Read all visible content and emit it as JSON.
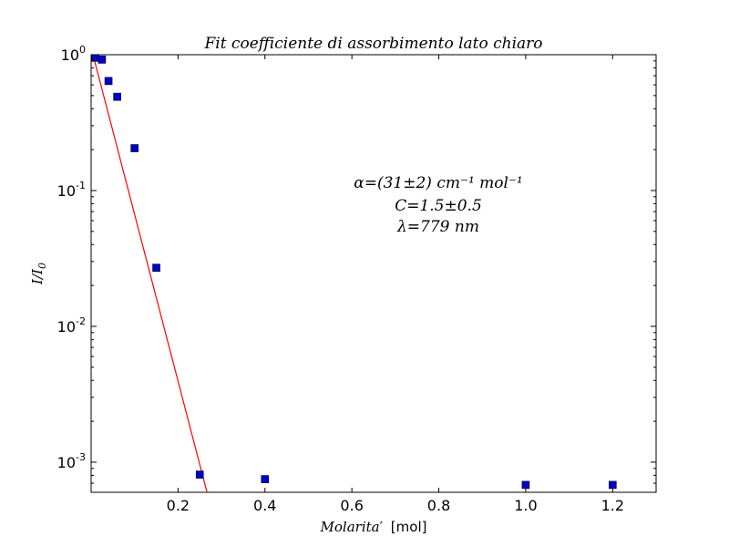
{
  "chart_data": {
    "type": "scatter",
    "title": "Fit coefficiente di assorbimento lato chiaro",
    "xlabel_math": "Molarita′",
    "xlabel_unit": "[mol]",
    "ylabel": "I/I",
    "ylabel_sub": "0",
    "xlim": [
      0.0,
      1.3
    ],
    "ylim": [
      0.0006,
      1.0
    ],
    "y_scale": "log",
    "grid": false,
    "x_ticks": [
      {
        "value": 0.2,
        "label": "0.2"
      },
      {
        "value": 0.4,
        "label": "0.4"
      },
      {
        "value": 0.6,
        "label": "0.6"
      },
      {
        "value": 0.8,
        "label": "0.8"
      },
      {
        "value": 1.0,
        "label": "1.0"
      },
      {
        "value": 1.2,
        "label": "1.2"
      }
    ],
    "y_ticks": [
      {
        "value": 1.0,
        "base": "10",
        "exp": "0"
      },
      {
        "value": 0.1,
        "base": "10",
        "exp": "-1"
      },
      {
        "value": 0.01,
        "base": "10",
        "exp": "-2"
      },
      {
        "value": 0.001,
        "base": "10",
        "exp": "-3"
      }
    ],
    "series": [
      {
        "kind": "scatter",
        "marker": "square",
        "color": "#0000cc",
        "x": [
          0.01,
          0.025,
          0.04,
          0.06,
          0.1,
          0.15,
          0.25,
          0.4,
          1.0,
          1.2
        ],
        "y": [
          0.95,
          0.92,
          0.64,
          0.49,
          0.205,
          0.027,
          0.00081,
          0.00075,
          0.00068,
          0.00068
        ]
      },
      {
        "kind": "line",
        "color": "#ff0000",
        "x": [
          0.003,
          0.29
        ],
        "y": [
          1.04,
          0.00031
        ]
      }
    ],
    "annotations": [
      "α=(31±2) cm⁻¹ mol⁻¹",
      "C=1.5±0.5",
      "λ=779 nm"
    ]
  }
}
